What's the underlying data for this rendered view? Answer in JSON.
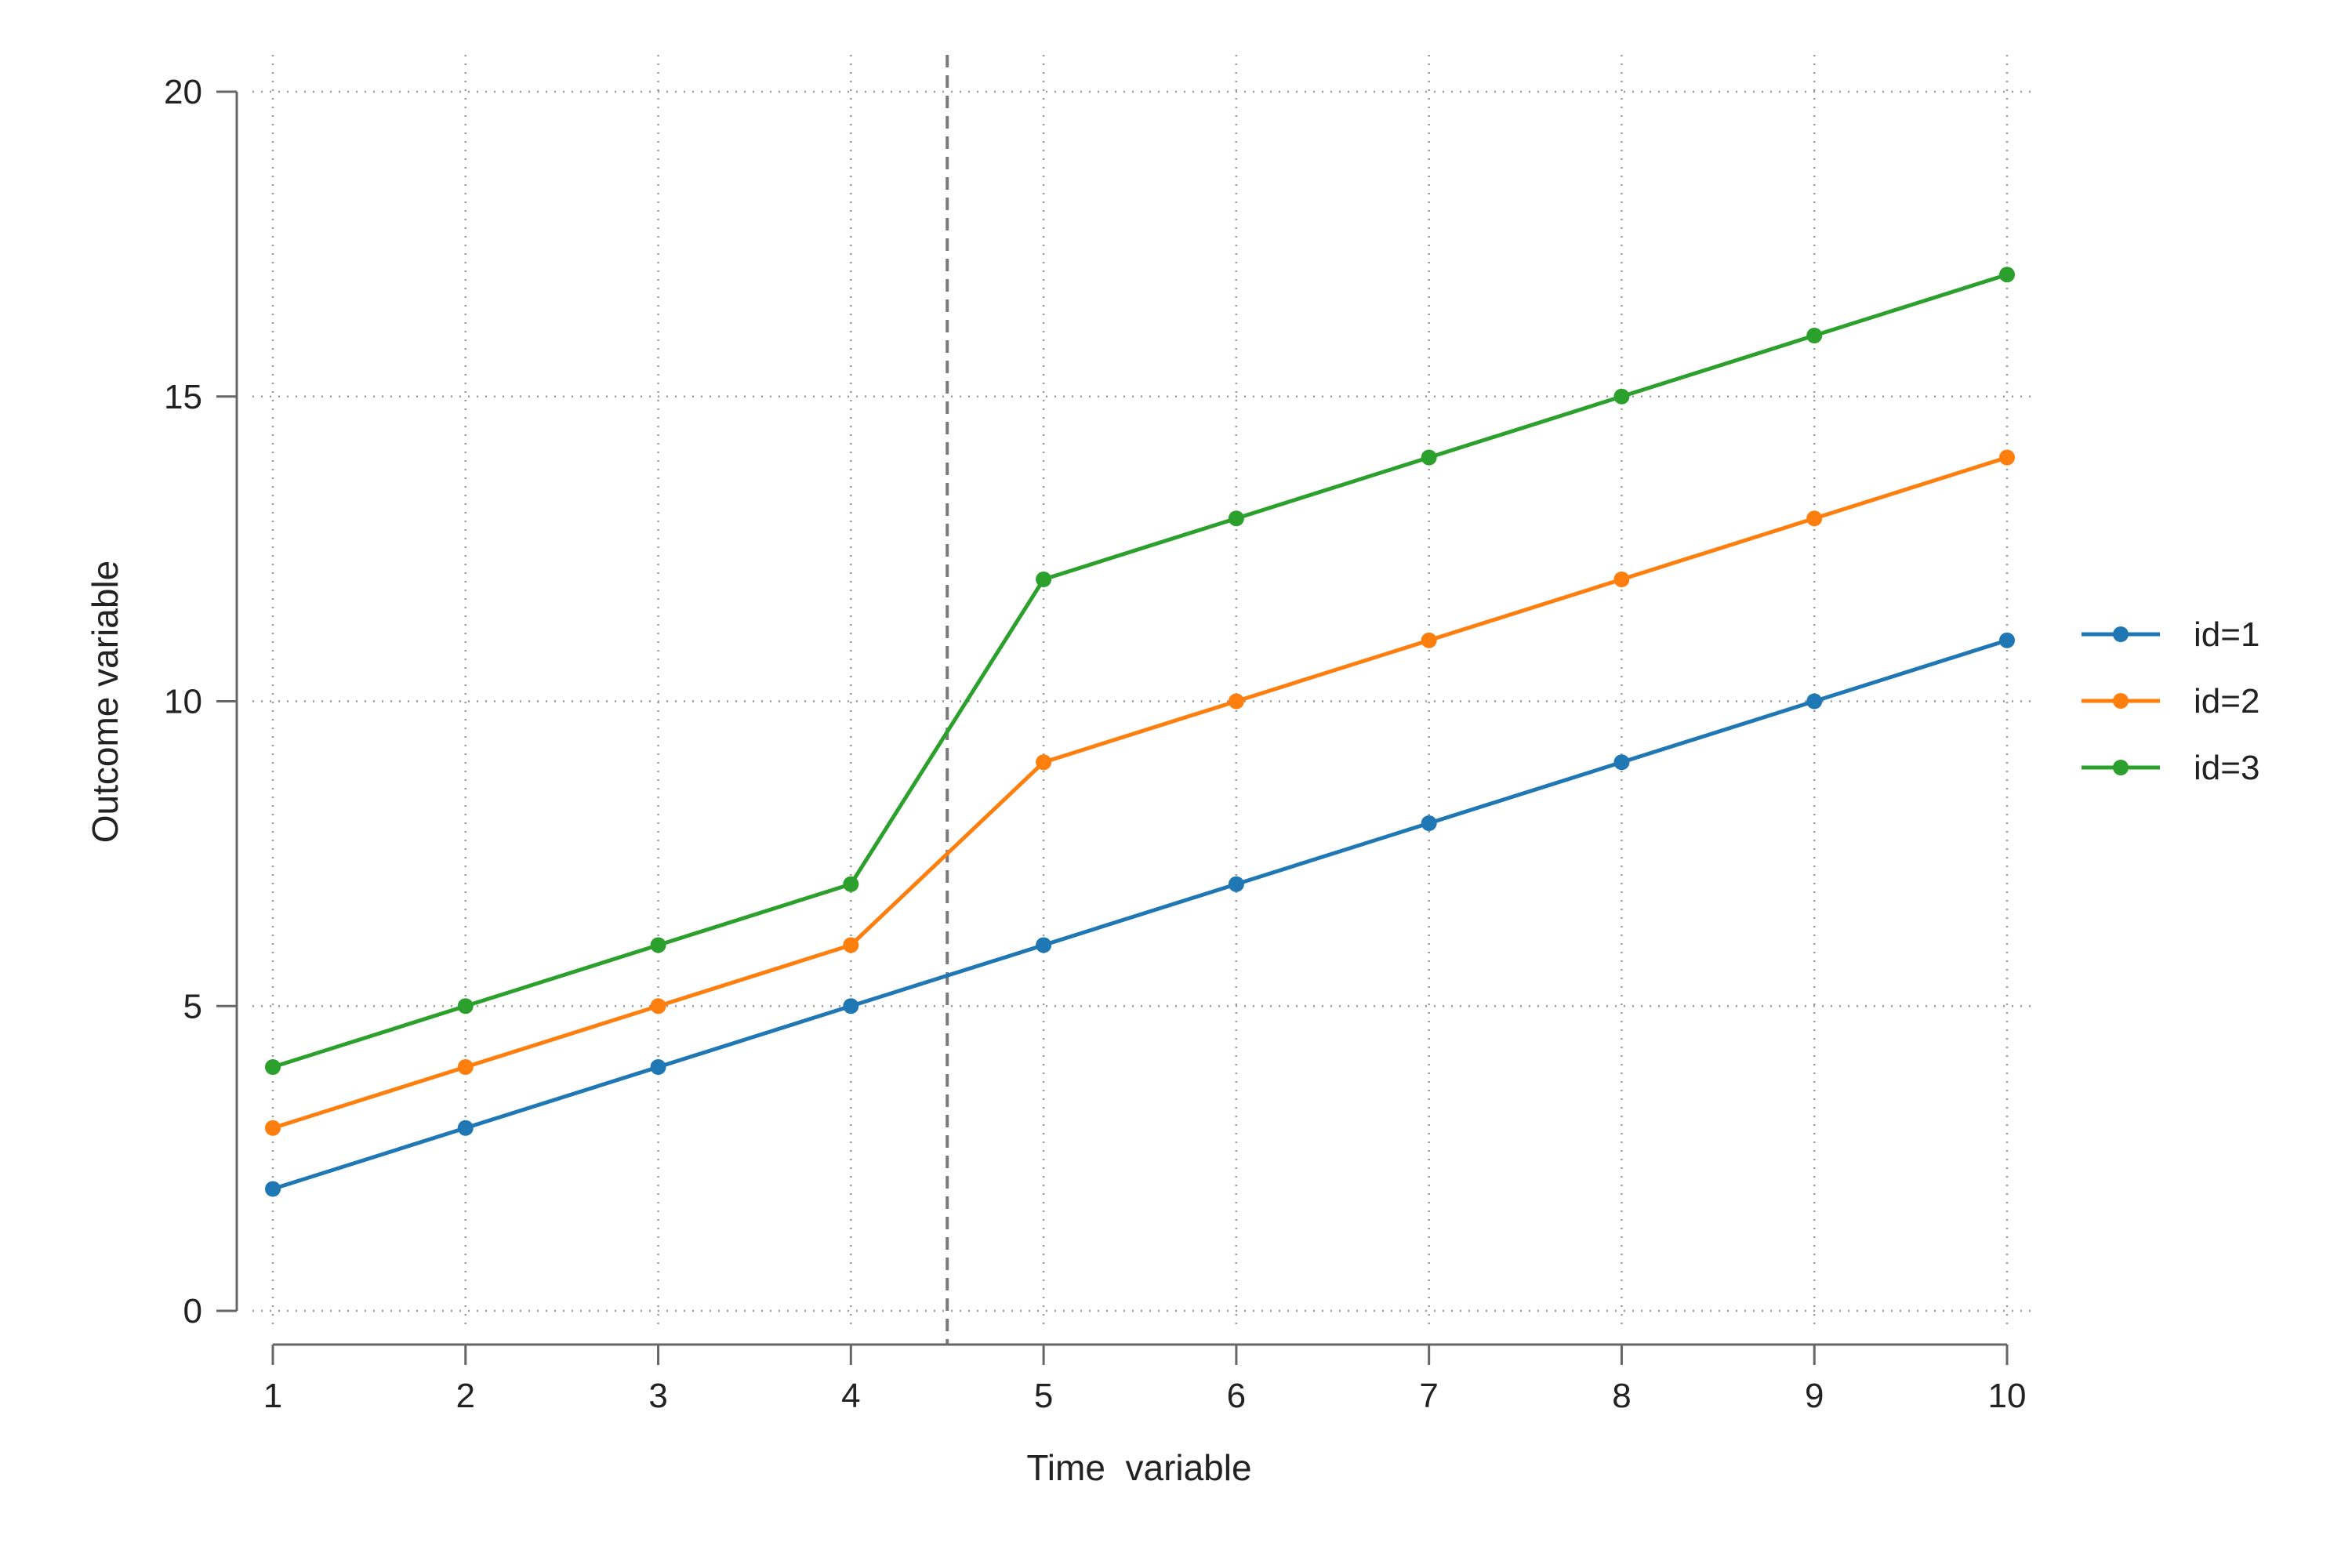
{
  "chart_data": {
    "type": "line",
    "title": "",
    "xlabel": "Time  variable",
    "ylabel": "Outcome variable",
    "x": [
      1,
      2,
      3,
      4,
      5,
      6,
      7,
      8,
      9,
      10
    ],
    "xticks": [
      "1",
      "2",
      "3",
      "4",
      "5",
      "6",
      "7",
      "8",
      "9",
      "10"
    ],
    "yticks": [
      "0",
      "5",
      "10",
      "15",
      "20"
    ],
    "xlim": [
      1,
      10
    ],
    "ylim": [
      0,
      20
    ],
    "grid": true,
    "reference_line_x": 4.5,
    "legend_position": "right",
    "series": [
      {
        "name": "id=1",
        "color": "#1f77b4",
        "values": [
          2,
          3,
          4,
          5,
          6,
          7,
          8,
          9,
          10,
          11
        ]
      },
      {
        "name": "id=2",
        "color": "#ff7f0e",
        "values": [
          3,
          4,
          5,
          6,
          9,
          10,
          11,
          12,
          13,
          14
        ]
      },
      {
        "name": "id=3",
        "color": "#2ca02c",
        "values": [
          4,
          5,
          6,
          7,
          12,
          13,
          14,
          15,
          16,
          17
        ]
      }
    ]
  }
}
